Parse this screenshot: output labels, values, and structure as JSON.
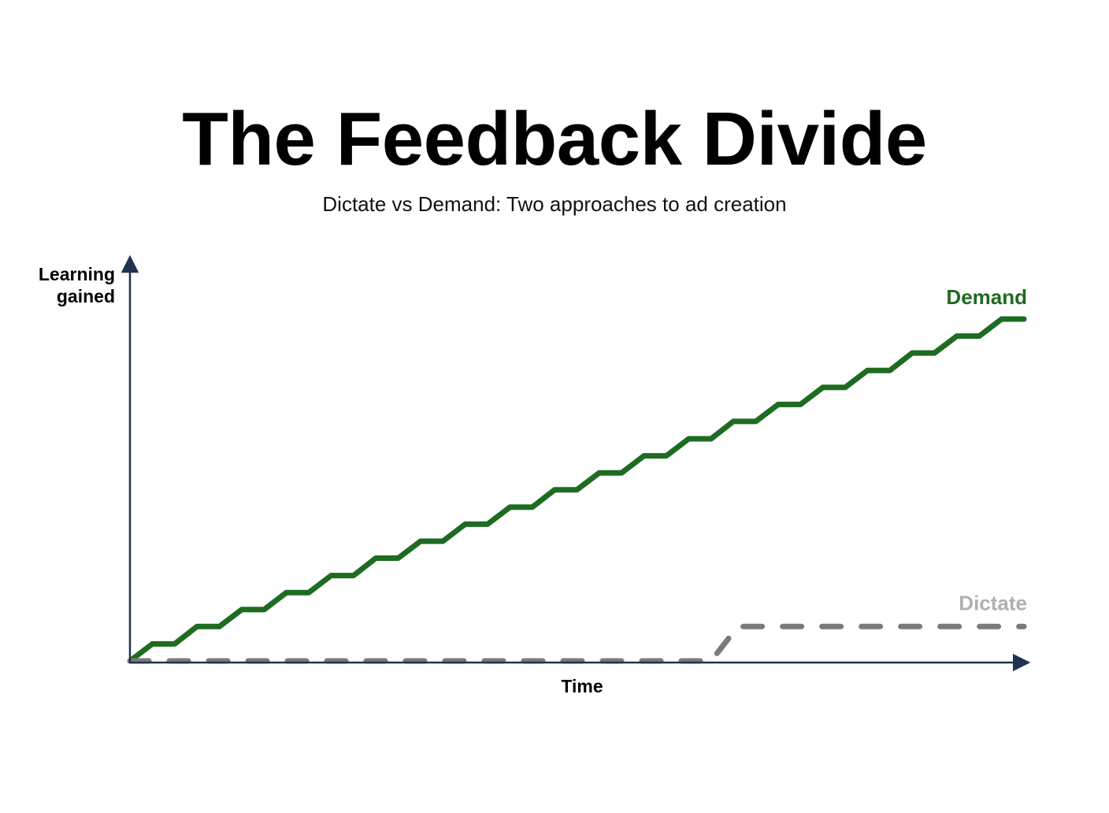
{
  "title": "The Feedback Divide",
  "subtitle": "Dictate vs Demand: Two approaches to ad creation",
  "chart_data": {
    "type": "line",
    "title": "The Feedback Divide",
    "subtitle": "Dictate vs Demand: Two approaches to ad creation",
    "xlabel": "Time",
    "ylabel_lines": [
      "Learning",
      "gained"
    ],
    "xlim": [
      0,
      100
    ],
    "ylim": [
      0,
      100
    ],
    "grid": false,
    "axis_color": "#1f3350",
    "series": [
      {
        "name": "Demand",
        "style": "stepped-solid",
        "color": "#1e6b22",
        "x": [
          0,
          2.5,
          5,
          7.5,
          10,
          12.5,
          15,
          17.5,
          20,
          22.5,
          25,
          27.5,
          30,
          32.5,
          35,
          37.5,
          40,
          42.5,
          45,
          47.5,
          50,
          52.5,
          55,
          57.5,
          60,
          62.5,
          65,
          67.5,
          70,
          72.5,
          75,
          77.5,
          80,
          82.5,
          85,
          87.5,
          90,
          92.5,
          95,
          97.5,
          100
        ],
        "y": [
          0,
          4.2,
          4.2,
          8.5,
          8.5,
          12.7,
          12.7,
          16.9,
          16.9,
          21.1,
          21.1,
          25.4,
          25.4,
          29.6,
          29.6,
          33.8,
          33.8,
          38,
          38,
          42.3,
          42.3,
          46.5,
          46.5,
          50.7,
          50.7,
          54.9,
          54.9,
          59.2,
          59.2,
          63.4,
          63.4,
          67.6,
          67.6,
          71.8,
          71.8,
          76.1,
          76.1,
          80.3,
          80.3,
          84.5,
          84.5
        ]
      },
      {
        "name": "Dictate",
        "style": "dashed",
        "color": "#7a7a7a",
        "label_color": "#b0b0b0",
        "x": [
          0,
          65,
          68,
          100
        ],
        "y": [
          0,
          0,
          8.5,
          8.5
        ]
      }
    ]
  }
}
